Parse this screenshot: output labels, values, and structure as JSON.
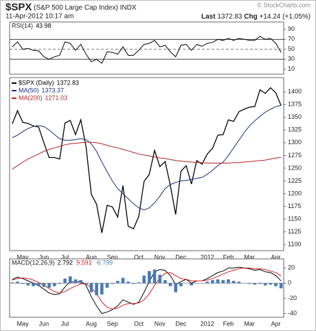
{
  "header": {
    "symbol": "$SPX",
    "name": "(S&P 500 Large Cap Index)",
    "exchange": "INDX",
    "date": "11-Apr-2012 10:17 am",
    "last_label": "Last",
    "chg_label": "Chg",
    "chg": "+14.24 (+1.05%)",
    "brand": "© StockCharts.com"
  },
  "chart_data": [
    {
      "type": "line",
      "ylim": [
        0,
        105
      ],
      "yticks": [
        10,
        30,
        50,
        70,
        90
      ],
      "hlines": [
        30,
        70
      ],
      "dashed_hlines": [
        50
      ],
      "series": [
        {
          "name": "RSI(14)",
          "color": "#000000",
          "values": [
            55,
            65,
            50,
            52,
            48,
            47,
            35,
            30,
            35,
            38,
            65,
            62,
            48,
            60,
            40,
            25,
            30,
            22,
            45,
            44,
            40,
            55,
            38,
            38,
            48,
            60,
            62,
            68,
            55,
            58,
            45,
            35,
            58,
            60,
            48,
            60,
            56,
            62,
            64,
            70,
            68,
            72,
            68,
            72,
            70,
            68,
            68,
            76,
            70,
            72,
            62,
            43.98
          ]
        }
      ]
    },
    {
      "type": "line",
      "ylim": [
        1088,
        1428
      ],
      "yticks": [
        1100,
        1125,
        1150,
        1175,
        1200,
        1225,
        1250,
        1275,
        1300,
        1325,
        1350,
        1375,
        1400
      ],
      "categories": [
        null,
        null,
        "May",
        null,
        null,
        null,
        "Jun",
        null,
        null,
        null,
        "Jul",
        null,
        null,
        null,
        null,
        "Aug",
        null,
        null,
        null,
        "Sep",
        null,
        null,
        null,
        null,
        "Oct",
        null,
        null,
        null,
        "Nov",
        null,
        null,
        null,
        "Dec",
        null,
        null,
        null,
        null,
        "2012",
        null,
        null,
        null,
        "Feb",
        null,
        null,
        null,
        "Mar",
        null,
        null,
        null,
        null,
        "Apr",
        null
      ],
      "series": [
        {
          "name": "$SPX (Daily)",
          "color": "#000000",
          "values": [
            1337,
            1363,
            1340,
            1338,
            1333,
            1331,
            1300,
            1271,
            1271,
            1268,
            1339,
            1344,
            1316,
            1345,
            1292,
            1199,
            1179,
            1123,
            1177,
            1174,
            1154,
            1216,
            1136,
            1131,
            1155,
            1224,
            1238,
            1285,
            1253,
            1263,
            1216,
            1159,
            1244,
            1255,
            1219,
            1265,
            1258,
            1278,
            1289,
            1315,
            1316,
            1345,
            1342,
            1361,
            1366,
            1370,
            1371,
            1404,
            1397,
            1408,
            1398,
            1372.83
          ]
        },
        {
          "name": "MA(50)",
          "color": "#1f2a7a",
          "values": [
            1310,
            1315,
            1322,
            1328,
            1332,
            1334,
            1332,
            1325,
            1316,
            1308,
            1305,
            1305,
            1306,
            1308,
            1306,
            1298,
            1283,
            1262,
            1243,
            1225,
            1210,
            1200,
            1190,
            1180,
            1172,
            1168,
            1172,
            1182,
            1195,
            1210,
            1218,
            1222,
            1225,
            1226,
            1228,
            1230,
            1232,
            1238,
            1246,
            1255,
            1262,
            1275,
            1290,
            1305,
            1320,
            1333,
            1343,
            1352,
            1360,
            1366,
            1371,
            1373.37
          ]
        },
        {
          "name": "MA(200)",
          "color": "#b22222",
          "values": [
            1248,
            1255,
            1262,
            1268,
            1273,
            1278,
            1283,
            1287,
            1290,
            1293,
            1296,
            1298,
            1299,
            1300,
            1301,
            1301,
            1300,
            1298,
            1295,
            1292,
            1290,
            1287,
            1284,
            1281,
            1278,
            1276,
            1274,
            1272,
            1270,
            1269,
            1267,
            1265,
            1264,
            1263,
            1262,
            1261,
            1261,
            1260,
            1260,
            1260,
            1260,
            1260,
            1261,
            1261,
            1262,
            1263,
            1264,
            1265,
            1266,
            1268,
            1270,
            1271.03
          ]
        }
      ]
    },
    {
      "type": "line",
      "ylim": [
        -45,
        32
      ],
      "yticks": [
        -40,
        -20,
        0,
        20
      ],
      "zero_line": 0,
      "categories": [
        null,
        null,
        "May",
        null,
        null,
        null,
        "Jun",
        null,
        null,
        null,
        "Jul",
        null,
        null,
        null,
        null,
        "Aug",
        null,
        null,
        null,
        "Sep",
        null,
        null,
        null,
        null,
        "Oct",
        null,
        null,
        null,
        "Nov",
        null,
        null,
        null,
        "Dec",
        null,
        null,
        null,
        null,
        "2012",
        null,
        null,
        null,
        "Feb",
        null,
        null,
        null,
        "Mar",
        null,
        null,
        null,
        null,
        "Apr",
        null
      ],
      "series": [
        {
          "name": "MACD(12,26,9)",
          "color": "#000000",
          "values": [
            5,
            8,
            6,
            3,
            0,
            -3,
            -8,
            -13,
            -15,
            -14,
            -5,
            2,
            1,
            3,
            -3,
            -18,
            -30,
            -40,
            -38,
            -35,
            -30,
            -22,
            -25,
            -28,
            -25,
            -12,
            2,
            15,
            18,
            17,
            10,
            -2,
            2,
            5,
            0,
            3,
            3,
            6,
            10,
            14,
            16,
            20,
            20,
            21,
            20,
            19,
            17,
            18,
            15,
            14,
            10,
            2.792
          ]
        },
        {
          "color": "#d62020",
          "values": [
            4,
            6,
            7,
            6,
            4,
            1,
            -3,
            -7,
            -11,
            -13,
            -11,
            -7,
            -4,
            -1,
            -1,
            -6,
            -14,
            -25,
            -32,
            -34,
            -33,
            -29,
            -27,
            -27,
            -26,
            -22,
            -14,
            -3,
            7,
            13,
            14,
            10,
            6,
            5,
            3,
            3,
            3,
            4,
            6,
            9,
            12,
            15,
            17,
            19,
            20,
            20,
            19,
            19,
            18,
            16,
            14,
            9.591
          ]
        },
        {
          "type": "bar",
          "color": "#4a7ab5",
          "values": [
            1,
            2,
            -1,
            -3,
            -4,
            -4,
            -5,
            -6,
            -4,
            -1,
            6,
            9,
            5,
            4,
            -2,
            -12,
            -16,
            -15,
            -6,
            -1,
            3,
            7,
            2,
            -1,
            1,
            10,
            16,
            18,
            11,
            4,
            -4,
            -12,
            -4,
            0,
            -3,
            0,
            0,
            2,
            4,
            5,
            4,
            5,
            3,
            2,
            0,
            -1,
            -2,
            -1,
            -3,
            -2,
            -4,
            -6.799
          ]
        }
      ]
    }
  ]
}
